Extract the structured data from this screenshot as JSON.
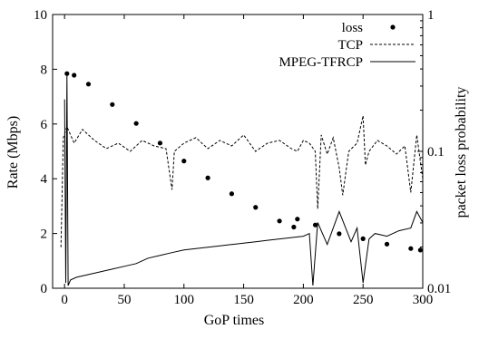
{
  "chart_data": {
    "type": "line",
    "xlabel": "GoP times",
    "ylabel": "Rate (Mbps)",
    "y2label": "packet loss probability",
    "xlim": [
      -10,
      300
    ],
    "ylim": [
      0,
      10
    ],
    "y2lim": [
      0.01,
      1
    ],
    "y2scale": "log",
    "x_ticks": [
      "0",
      "50",
      "100",
      "150",
      "200",
      "250",
      "300"
    ],
    "y_ticks": [
      "0",
      "2",
      "4",
      "6",
      "8",
      "10"
    ],
    "y2_ticks": [
      "0.01",
      "0.1",
      "1"
    ],
    "legend_position": "top-right",
    "series": [
      {
        "name": "loss",
        "axis": "y2",
        "style": "points",
        "x": [
          2,
          8,
          20,
          40,
          60,
          80,
          100,
          120,
          140,
          160,
          180,
          192,
          195,
          210,
          230,
          250,
          270,
          290,
          298
        ],
        "y": [
          0.37,
          0.36,
          0.31,
          0.22,
          0.16,
          0.115,
          0.085,
          0.064,
          0.049,
          0.039,
          0.031,
          0.028,
          0.032,
          0.029,
          0.025,
          0.023,
          0.021,
          0.0195,
          0.019
        ]
      },
      {
        "name": "TCP",
        "axis": "y",
        "style": "dashed",
        "x": [
          -3,
          -1,
          2,
          8,
          15,
          25,
          35,
          45,
          55,
          65,
          75,
          85,
          90,
          92,
          100,
          110,
          120,
          130,
          140,
          150,
          160,
          170,
          180,
          190,
          195,
          200,
          205,
          210,
          212,
          215,
          220,
          225,
          230,
          233,
          238,
          245,
          250,
          252,
          255,
          262,
          270,
          278,
          285,
          290,
          295,
          300
        ],
        "y": [
          1.5,
          5.5,
          5.9,
          5.3,
          5.8,
          5.4,
          5.1,
          5.3,
          5.0,
          5.4,
          5.2,
          5.1,
          3.6,
          5.0,
          5.3,
          5.5,
          5.1,
          5.4,
          5.2,
          5.6,
          5.0,
          5.3,
          5.4,
          5.1,
          5.0,
          5.4,
          5.3,
          5.0,
          2.9,
          5.6,
          4.9,
          5.5,
          4.4,
          3.4,
          5.0,
          5.3,
          6.3,
          4.5,
          5.0,
          5.4,
          5.2,
          4.9,
          5.2,
          3.5,
          5.6,
          4.0
        ]
      },
      {
        "name": "MPEG-TFRCP",
        "axis": "y",
        "style": "solid",
        "x": [
          0,
          1,
          2,
          3,
          5,
          10,
          20,
          30,
          40,
          50,
          60,
          70,
          80,
          90,
          100,
          110,
          120,
          130,
          140,
          150,
          160,
          170,
          180,
          190,
          200,
          205,
          208,
          212,
          220,
          230,
          240,
          245,
          250,
          255,
          260,
          270,
          280,
          290,
          295,
          300
        ],
        "y": [
          6.9,
          0.2,
          7.8,
          0.1,
          0.3,
          0.4,
          0.5,
          0.6,
          0.7,
          0.8,
          0.9,
          1.1,
          1.2,
          1.3,
          1.4,
          1.45,
          1.5,
          1.55,
          1.6,
          1.65,
          1.7,
          1.75,
          1.8,
          1.85,
          1.9,
          2.0,
          0.1,
          2.4,
          1.6,
          2.8,
          1.7,
          2.2,
          0.2,
          1.8,
          2.0,
          1.9,
          2.1,
          2.2,
          2.8,
          2.4
        ]
      }
    ]
  }
}
